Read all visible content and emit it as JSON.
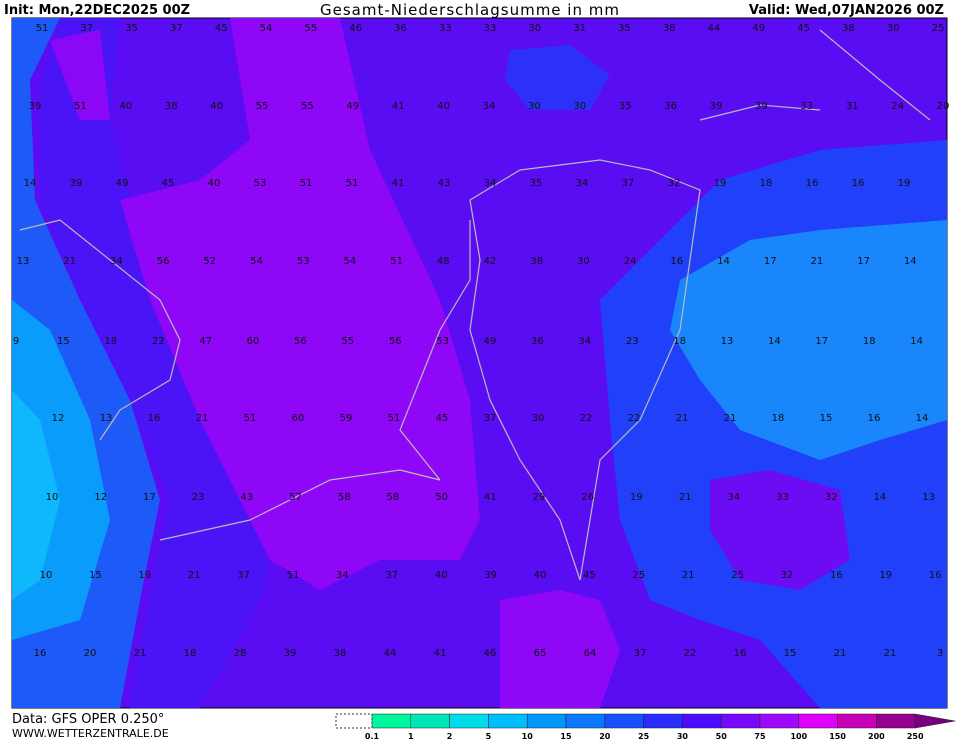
{
  "header": {
    "init": "Init: Mon,22DEC2025 00Z",
    "title": "Gesamt-Niederschlagsumme in mm",
    "valid": "Valid: Wed,07JAN2026 00Z"
  },
  "map": {
    "rows": [
      [
        51,
        37,
        35,
        37,
        45,
        54,
        55,
        46,
        36,
        33,
        33,
        30,
        31,
        35,
        38,
        44,
        49,
        45,
        38,
        30,
        25
      ],
      [
        39,
        51,
        40,
        38,
        40,
        55,
        55,
        49,
        41,
        40,
        34,
        30,
        30,
        35,
        36,
        39,
        39,
        33,
        31,
        24,
        20
      ],
      [
        14,
        39,
        49,
        45,
        40,
        53,
        51,
        51,
        41,
        43,
        34,
        35,
        34,
        37,
        32,
        19,
        18,
        16,
        16,
        19
      ],
      [
        13,
        21,
        34,
        56,
        52,
        54,
        53,
        54,
        51,
        48,
        42,
        38,
        30,
        24,
        16,
        14,
        17,
        21,
        17,
        14
      ],
      [
        9,
        15,
        18,
        22,
        47,
        60,
        56,
        55,
        56,
        53,
        49,
        36,
        34,
        23,
        18,
        13,
        14,
        17,
        18,
        14
      ],
      [
        12,
        13,
        16,
        21,
        51,
        60,
        59,
        51,
        45,
        37,
        30,
        22,
        22,
        21,
        21,
        18,
        15,
        16,
        14
      ],
      [
        10,
        12,
        17,
        23,
        43,
        57,
        58,
        58,
        50,
        41,
        29,
        26,
        19,
        21,
        34,
        33,
        32,
        14,
        13
      ],
      [
        10,
        15,
        19,
        21,
        37,
        51,
        34,
        37,
        40,
        39,
        40,
        45,
        25,
        21,
        25,
        32,
        16,
        19,
        16
      ],
      [
        16,
        20,
        21,
        18,
        28,
        39,
        38,
        44,
        41,
        46,
        65,
        64,
        37,
        22,
        16,
        15,
        21,
        21,
        3
      ]
    ]
  },
  "legend": {
    "ticks": [
      0.1,
      1,
      2,
      5,
      10,
      15,
      20,
      25,
      30,
      50,
      75,
      100,
      150,
      200,
      250
    ]
  },
  "footer": {
    "data": "Data: GFS OPER 0.250°",
    "site": "WWW.WETTERZENTRALE.DE"
  }
}
